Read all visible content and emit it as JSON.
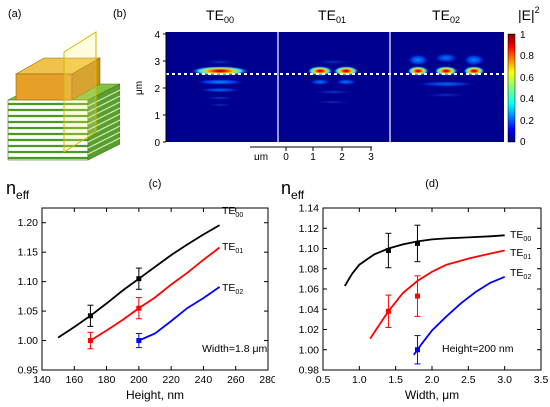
{
  "panels": {
    "a": {
      "label": "(a)"
    },
    "b": {
      "label": "(b)",
      "mode_titles": [
        {
          "main": "TE",
          "sub": "00"
        },
        {
          "main": "TE",
          "sub": "01"
        },
        {
          "main": "TE",
          "sub": "02"
        }
      ],
      "ylabel": "μm",
      "yticks": [
        "0",
        "1",
        "2",
        "3",
        "4"
      ],
      "scale_unit": "μm",
      "scale_ticks": [
        "0",
        "1",
        "2",
        "3"
      ],
      "colorbar_label": "|E|",
      "colorbar_sup": "2",
      "colorbar_ticks": [
        "0",
        "0.2",
        "0.4",
        "0.6",
        "0.8",
        "1"
      ]
    },
    "c": {
      "label": "(c)"
    },
    "d": {
      "label": "(d)"
    }
  },
  "chart_data": [
    {
      "type": "line",
      "panel": "c",
      "ylabel_main": "n",
      "ylabel_sub": "eff",
      "xlabel": "Height, nm",
      "xlim": [
        140,
        280
      ],
      "ylim": [
        0.95,
        1.225
      ],
      "xticks": [
        "140",
        "160",
        "180",
        "200",
        "220",
        "240",
        "260",
        "280"
      ],
      "yticks": [
        "0.95",
        "1.00",
        "1.05",
        "1.10",
        "1.15",
        "1.20"
      ],
      "annotation": "Width=1.8 μm",
      "series": [
        {
          "name": "TE",
          "sub": "00",
          "color": "#000000",
          "x": [
            150,
            160,
            170,
            180,
            190,
            200,
            210,
            220,
            230,
            240,
            250
          ],
          "y": [
            1.005,
            1.023,
            1.042,
            1.063,
            1.085,
            1.105,
            1.125,
            1.145,
            1.163,
            1.18,
            1.196
          ]
        },
        {
          "name": "TE",
          "sub": "01",
          "color": "#ff0000",
          "x": [
            170,
            180,
            190,
            200,
            210,
            220,
            230,
            240,
            250
          ],
          "y": [
            1.0,
            1.017,
            1.035,
            1.055,
            1.073,
            1.095,
            1.115,
            1.137,
            1.158
          ]
        },
        {
          "name": "TE",
          "sub": "02",
          "color": "#0000ff",
          "x": [
            200,
            210,
            220,
            230,
            240,
            250
          ],
          "y": [
            1.0,
            1.012,
            1.033,
            1.055,
            1.072,
            1.091
          ]
        }
      ],
      "points": [
        {
          "x": 170,
          "y": 1.042,
          "err": 0.018,
          "color": "#000000"
        },
        {
          "x": 200,
          "y": 1.105,
          "err": 0.018,
          "color": "#000000"
        },
        {
          "x": 170,
          "y": 1.0,
          "err": 0.014,
          "color": "#ff0000"
        },
        {
          "x": 200,
          "y": 1.055,
          "err": 0.018,
          "color": "#ff0000"
        },
        {
          "x": 200,
          "y": 1.0,
          "err": 0.012,
          "color": "#0000ff"
        }
      ]
    },
    {
      "type": "line",
      "panel": "d",
      "ylabel_main": "n",
      "ylabel_sub": "eff",
      "xlabel": "Width, μm",
      "xlim": [
        0.5,
        3.5
      ],
      "ylim": [
        0.98,
        1.14
      ],
      "xticks": [
        "0.5",
        "1.0",
        "1.5",
        "2.0",
        "2.5",
        "3.0",
        "3.5"
      ],
      "yticks": [
        "0.98",
        "1.00",
        "1.02",
        "1.04",
        "1.06",
        "1.08",
        "1.10",
        "1.12",
        "1.14"
      ],
      "annotation": "Height=200 nm",
      "series": [
        {
          "name": "TE",
          "sub": "00",
          "color": "#000000",
          "x": [
            0.8,
            0.9,
            1.0,
            1.2,
            1.4,
            1.6,
            1.8,
            2.0,
            2.2,
            2.5,
            2.8,
            3.0
          ],
          "y": [
            1.063,
            1.075,
            1.084,
            1.094,
            1.1,
            1.104,
            1.107,
            1.109,
            1.11,
            1.111,
            1.112,
            1.113
          ]
        },
        {
          "name": "TE",
          "sub": "01",
          "color": "#ff0000",
          "x": [
            1.15,
            1.25,
            1.4,
            1.6,
            1.8,
            2.0,
            2.2,
            2.5,
            2.8,
            3.0
          ],
          "y": [
            1.011,
            1.022,
            1.038,
            1.056,
            1.068,
            1.077,
            1.084,
            1.09,
            1.095,
            1.098
          ]
        },
        {
          "name": "TE",
          "sub": "02",
          "color": "#0000ff",
          "x": [
            1.75,
            1.85,
            2.0,
            2.2,
            2.4,
            2.6,
            2.8,
            3.0
          ],
          "y": [
            0.995,
            1.005,
            1.019,
            1.033,
            1.046,
            1.057,
            1.066,
            1.072
          ]
        }
      ],
      "points": [
        {
          "x": 1.4,
          "y": 1.098,
          "err": 0.017,
          "color": "#000000"
        },
        {
          "x": 1.8,
          "y": 1.105,
          "err": 0.018,
          "color": "#000000"
        },
        {
          "x": 1.4,
          "y": 1.038,
          "err": 0.016,
          "color": "#ff0000"
        },
        {
          "x": 1.8,
          "y": 1.053,
          "err": 0.02,
          "color": "#ff0000"
        },
        {
          "x": 1.8,
          "y": 1.0,
          "err": 0.014,
          "color": "#0000ff"
        }
      ]
    }
  ]
}
